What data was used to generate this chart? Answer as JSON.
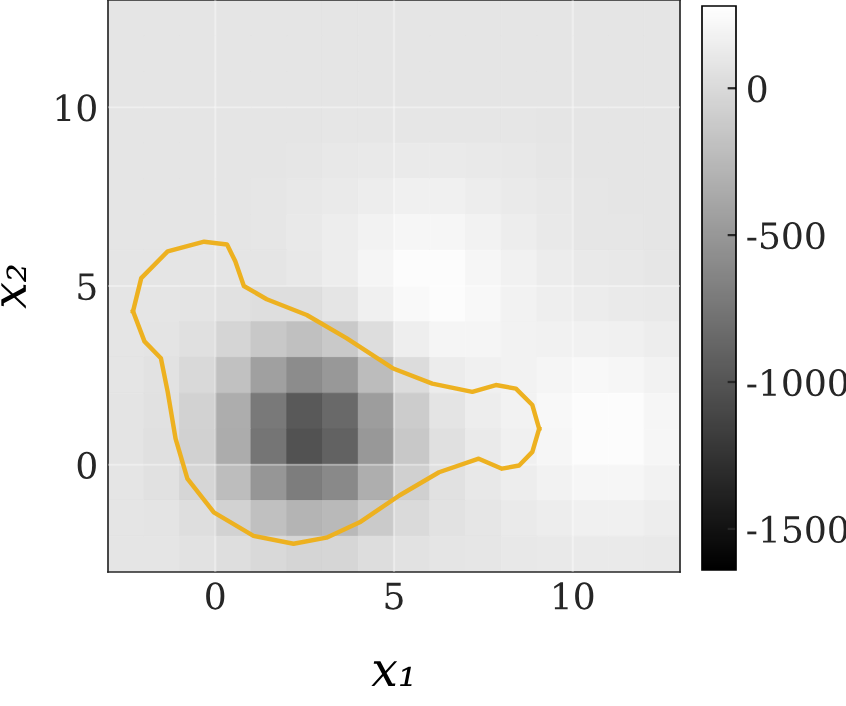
{
  "chart_data": {
    "type": "heatmap",
    "xlabel": "x₁",
    "ylabel": "x₂",
    "x": [
      -2.5,
      -1.5,
      -0.5,
      0.5,
      1.5,
      2.5,
      3.5,
      4.5,
      5.5,
      6.5,
      7.5,
      8.5,
      9.5,
      10.5,
      11.5,
      12.5
    ],
    "y": [
      12.5,
      11.5,
      10.5,
      9.5,
      8.5,
      7.5,
      6.5,
      5.5,
      4.5,
      3.5,
      2.5,
      1.5,
      0.5,
      -0.5,
      -1.5,
      -2.5
    ],
    "cells": [
      [
        80,
        80,
        80,
        80,
        80,
        80,
        80,
        80,
        80,
        80,
        80,
        80,
        80,
        80,
        80,
        80
      ],
      [
        80,
        80,
        80,
        80,
        80,
        80,
        80,
        80,
        80,
        80,
        80,
        80,
        80,
        80,
        80,
        80
      ],
      [
        80,
        80,
        80,
        80,
        80,
        80,
        80,
        80,
        80,
        80,
        80,
        80,
        80,
        80,
        80,
        80
      ],
      [
        80,
        80,
        80,
        80,
        80,
        80,
        90,
        90,
        90,
        90,
        90,
        90,
        80,
        80,
        80,
        80
      ],
      [
        80,
        80,
        80,
        80,
        80,
        90,
        100,
        110,
        120,
        120,
        110,
        100,
        90,
        80,
        80,
        80
      ],
      [
        80,
        80,
        80,
        80,
        90,
        100,
        120,
        140,
        160,
        160,
        140,
        120,
        100,
        90,
        80,
        80
      ],
      [
        80,
        80,
        80,
        80,
        90,
        110,
        140,
        180,
        210,
        210,
        180,
        140,
        110,
        90,
        90,
        80
      ],
      [
        80,
        80,
        80,
        80,
        80,
        100,
        140,
        200,
        250,
        250,
        210,
        170,
        130,
        110,
        100,
        90
      ],
      [
        80,
        80,
        70,
        50,
        30,
        30,
        80,
        160,
        230,
        250,
        220,
        180,
        150,
        130,
        120,
        110
      ],
      [
        80,
        70,
        40,
        -40,
        -140,
        -200,
        -130,
        20,
        150,
        200,
        200,
        180,
        170,
        170,
        160,
        140
      ],
      [
        80,
        60,
        -10,
        -190,
        -440,
        -590,
        -500,
        -230,
        10,
        130,
        160,
        180,
        200,
        220,
        210,
        180
      ],
      [
        70,
        50,
        -60,
        -340,
        -730,
        -970,
        -850,
        -460,
        -110,
        70,
        140,
        180,
        220,
        250,
        250,
        210
      ],
      [
        70,
        40,
        -70,
        -350,
        -760,
        -1020,
        -900,
        -500,
        -140,
        40,
        120,
        160,
        210,
        250,
        250,
        210
      ],
      [
        80,
        50,
        -30,
        -220,
        -510,
        -700,
        -610,
        -330,
        -80,
        50,
        100,
        140,
        180,
        210,
        210,
        180
      ],
      [
        80,
        70,
        30,
        -60,
        -200,
        -290,
        -250,
        -120,
        0,
        60,
        90,
        120,
        140,
        160,
        160,
        140
      ],
      [
        80,
        80,
        60,
        30,
        -10,
        -40,
        -30,
        20,
        60,
        80,
        90,
        100,
        110,
        120,
        120,
        110
      ]
    ],
    "clim": [
      -1640,
      280
    ],
    "cticks": [
      {
        "value": -1500,
        "label": "-1500"
      },
      {
        "value": -1000,
        "label": "-1000"
      },
      {
        "value": -500,
        "label": "-500"
      },
      {
        "value": 0,
        "label": "0"
      }
    ],
    "xlim": [
      -3,
      13
    ],
    "ylim": [
      -3,
      13
    ],
    "xticks": [
      0,
      5,
      10
    ],
    "yticks": [
      0,
      5,
      10
    ],
    "grid": true,
    "series": [
      {
        "type": "line",
        "color": "#edb120",
        "x": [
          -2.3,
          -2.07,
          -1.33,
          -0.31,
          0.33,
          0.56,
          0.8,
          1.44,
          2.56,
          3.67,
          4.96,
          6.07,
          7.19,
          7.85,
          8.41,
          8.87,
          9.06
        ],
        "values": [
          4.29,
          5.22,
          5.97,
          6.24,
          6.16,
          5.69,
          5.0,
          4.63,
          4.19,
          3.54,
          2.7,
          2.27,
          2.04,
          2.23,
          2.13,
          1.67,
          1.01
        ]
      },
      {
        "type": "line",
        "color": "#edb120",
        "x": [
          -2.3,
          -1.98,
          -1.52,
          -1.33,
          -1.11,
          -0.78,
          -0.04,
          1.07,
          2.19,
          3.11,
          4.04,
          5.15,
          6.26,
          7.37,
          8.02,
          8.5,
          8.87,
          9.06
        ],
        "values": [
          4.29,
          3.45,
          2.98,
          2.04,
          0.73,
          -0.39,
          -1.33,
          -1.99,
          -2.21,
          -2.04,
          -1.61,
          -0.86,
          -0.21,
          0.17,
          -0.11,
          -0.02,
          0.36,
          1.01
        ]
      }
    ]
  }
}
